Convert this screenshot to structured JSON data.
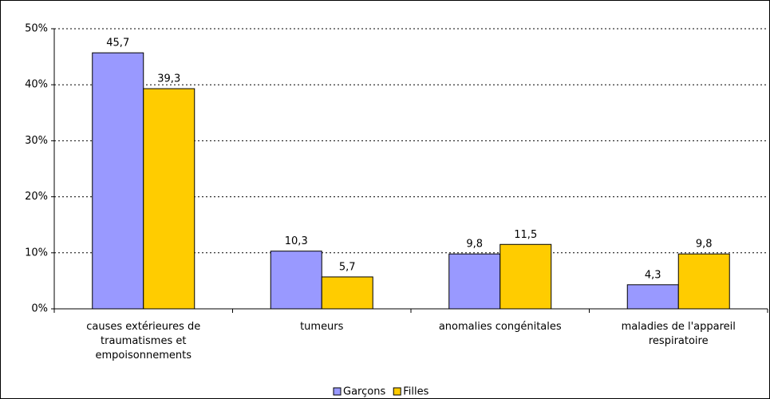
{
  "chart_data": {
    "type": "bar",
    "categories": [
      "causes extérieures de traumatismes et empoisonnements",
      "tumeurs",
      "anomalies congénitales",
      "maladies de l'appareil respiratoire"
    ],
    "series": [
      {
        "name": "Garçons",
        "color": "#9999ff",
        "values": [
          45.7,
          10.3,
          9.8,
          4.3
        ],
        "value_labels": [
          "45,7",
          "10,3",
          "9,8",
          "4,3"
        ]
      },
      {
        "name": "Filles",
        "color": "#ffcc00",
        "values": [
          39.3,
          5.7,
          11.5,
          9.8
        ],
        "value_labels": [
          "39,3",
          "5,7",
          "11,5",
          "9,8"
        ]
      }
    ],
    "ylim": [
      0,
      50
    ],
    "yticks": [
      {
        "value": 0,
        "label": "0%"
      },
      {
        "value": 10,
        "label": "10%"
      },
      {
        "value": 20,
        "label": "20%"
      },
      {
        "value": 30,
        "label": "30%"
      },
      {
        "value": 40,
        "label": "40%"
      },
      {
        "value": 50,
        "label": "50%"
      }
    ],
    "grid": true,
    "legend": "bottom"
  }
}
